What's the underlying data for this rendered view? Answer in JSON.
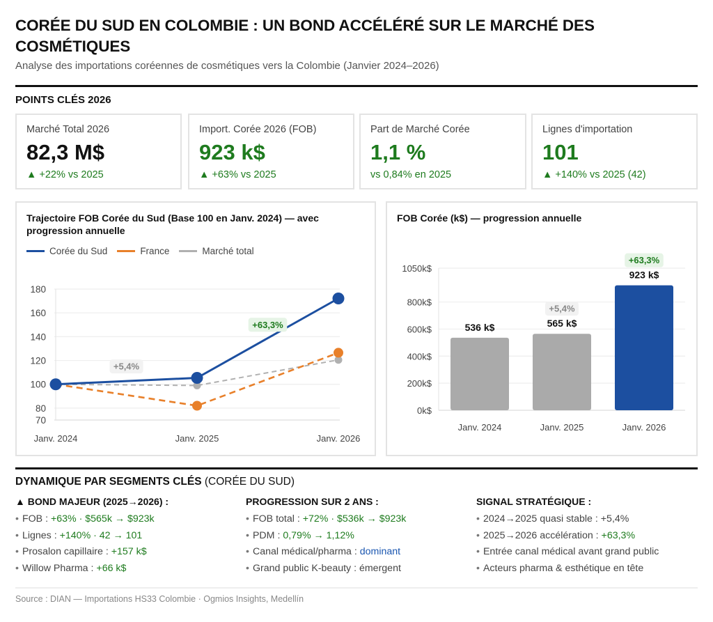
{
  "header": {
    "title": "CORÉE DU SUD EN COLOMBIE : UN BOND ACCÉLÉRÉ SUR LE MARCHÉ DES COSMÉTIQUES",
    "subtitle": "Analyse des importations coréennes de cosmétiques vers la Colombie (Janvier 2024–2026)"
  },
  "kpi_section": {
    "title": "POINTS CLÉS 2026",
    "cards": [
      {
        "label": "Marché Total 2026",
        "value": "82,3 M$",
        "delta": "▲ +22% vs 2025",
        "accent": "#111111"
      },
      {
        "label": "Import. Corée 2026 (FOB)",
        "value": "923 k$",
        "delta": "▲ +63% vs 2025",
        "accent": "#1e7b1e"
      },
      {
        "label": "Part de Marché Corée",
        "value": "1,1 %",
        "delta": "vs 0,84% en 2025",
        "accent": "#1e7b1e"
      },
      {
        "label": "Lignes d'importation",
        "value": "101",
        "delta": "▲ +140% vs 2025 (42)",
        "accent": "#1e7b1e"
      }
    ]
  },
  "chart_data": [
    {
      "type": "line",
      "title": "Trajectoire FOB Corée du Sud (Base 100 en Janv. 2024) — avec progression annuelle",
      "categories": [
        "Janv. 2024",
        "Janv. 2025",
        "Janv. 2026"
      ],
      "ylim": [
        70,
        180
      ],
      "yticks": [
        70,
        80,
        100,
        120,
        140,
        160,
        180
      ],
      "grid": true,
      "legend_position": "top-left",
      "series": [
        {
          "name": "Corée du Sud",
          "values": [
            100,
            105.4,
            172.1
          ],
          "color": "#1c4fa0",
          "style": "solid"
        },
        {
          "name": "France",
          "values": [
            100,
            82,
            126.5
          ],
          "color": "#e8802a",
          "style": "dashed"
        },
        {
          "name": "Marché total",
          "values": [
            100,
            99,
            120.5
          ],
          "color": "#b0b0b0",
          "style": "dashed"
        }
      ],
      "annotations": [
        {
          "text": "+5,4%",
          "between": [
            0,
            1
          ],
          "y": 115,
          "color": "#888888",
          "bg": "#f2f2f2"
        },
        {
          "text": "+63,3%",
          "between": [
            1,
            2
          ],
          "y": 150,
          "color": "#1e7b1e",
          "bg": "#e6f4e6"
        }
      ]
    },
    {
      "type": "bar",
      "title": "FOB Corée (k$) — progression annuelle",
      "categories": [
        "Janv. 2024",
        "Janv. 2025",
        "Janv. 2026"
      ],
      "values": [
        536,
        565,
        923
      ],
      "data_labels": [
        "536 k$",
        "565 k$",
        "923 k$"
      ],
      "colors": [
        "#aaaaaa",
        "#aaaaaa",
        "#1c4fa0"
      ],
      "growth_labels": [
        null,
        {
          "text": "+5,4%",
          "color": "#888888",
          "bg": "#f2f2f2"
        },
        {
          "text": "+63,3%",
          "color": "#1e7b1e",
          "bg": "#e6f4e6"
        }
      ],
      "ylim": [
        0,
        1050
      ],
      "yticks": [
        0,
        200,
        400,
        600,
        800,
        1050
      ],
      "ytick_labels": [
        "0k$",
        "200k$",
        "400k$",
        "600k$",
        "800k$",
        "1050k$"
      ],
      "grid": true,
      "ylabel": "",
      "xlabel": ""
    }
  ],
  "segments": {
    "title_bold": "DYNAMIQUE PAR SEGMENTS CLÉS",
    "title_light": " (CORÉE DU SUD)",
    "columns": [
      {
        "heading": "▲ BOND MAJEUR (2025→2026) :",
        "items": [
          {
            "label": "FOB : ",
            "value": "+63% · $565k → $923k",
            "tone": "g"
          },
          {
            "label": "Lignes : ",
            "value": "+140% · 42 → 101",
            "tone": "g"
          },
          {
            "label": "Prosalon capillaire : ",
            "value": "+157 k$",
            "tone": "g"
          },
          {
            "label": "Willow Pharma : ",
            "value": "+66 k$",
            "tone": "g"
          }
        ]
      },
      {
        "heading": "PROGRESSION SUR 2 ANS :",
        "items": [
          {
            "label": "FOB total : ",
            "value": "+72% · $536k → $923k",
            "tone": "g"
          },
          {
            "label": "PDM : ",
            "value": "0,79% → 1,12%",
            "tone": "g"
          },
          {
            "label": "Canal médical/pharma : ",
            "value": "dominant",
            "tone": "b"
          },
          {
            "label": "Grand public K-beauty : ",
            "value": "émergent",
            "tone": ""
          }
        ]
      },
      {
        "heading": "SIGNAL STRATÉGIQUE :",
        "items": [
          {
            "label": "2024→2025 quasi stable : ",
            "value": "+5,4%",
            "tone": ""
          },
          {
            "label": "2025→2026 accélération : ",
            "value": "+63,3%",
            "tone": "g"
          },
          {
            "label": "Entrée canal médical avant grand public",
            "value": "",
            "tone": ""
          },
          {
            "label": "Acteurs pharma & esthétique en tête",
            "value": "",
            "tone": ""
          }
        ]
      }
    ]
  },
  "footer": {
    "source": "Source : DIAN — Importations HS33 Colombie · Ogmios Insights, Medellín"
  }
}
